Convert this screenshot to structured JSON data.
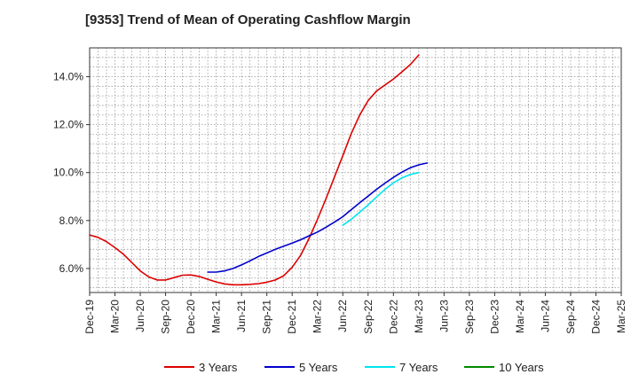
{
  "chart_data": {
    "type": "line",
    "title": "[9353]  Trend of Mean of Operating Cashflow Margin",
    "xlabel": "",
    "ylabel": "",
    "grid": true,
    "legend_position": "bottom",
    "x_categories": [
      "Dec-19",
      "Mar-20",
      "Jun-20",
      "Sep-20",
      "Dec-20",
      "Mar-21",
      "Jun-21",
      "Sep-21",
      "Dec-21",
      "Mar-22",
      "Jun-22",
      "Sep-22",
      "Dec-22",
      "Mar-23",
      "Jun-23",
      "Sep-23",
      "Dec-23",
      "Mar-24",
      "Jun-24",
      "Sep-24",
      "Dec-24",
      "Mar-25"
    ],
    "ylim": [
      5.0,
      15.2
    ],
    "y_ticks": [
      6.0,
      8.0,
      10.0,
      12.0,
      14.0
    ],
    "y_tick_labels": [
      "6.0%",
      "8.0%",
      "10.0%",
      "12.0%",
      "14.0%"
    ],
    "series": [
      {
        "name": "3 Years",
        "color": "#dd0000",
        "start_index": 0,
        "values": [
          7.4,
          7.3,
          7.12,
          6.87,
          6.6,
          6.25,
          5.9,
          5.65,
          5.52,
          5.52,
          5.62,
          5.72,
          5.73,
          5.67,
          5.55,
          5.44,
          5.36,
          5.32,
          5.32,
          5.34,
          5.37,
          5.43,
          5.52,
          5.7,
          6.05,
          6.55,
          7.25,
          8.05,
          8.9,
          9.8,
          10.7,
          11.62,
          12.4,
          13.0,
          13.4,
          13.65,
          13.9,
          14.2,
          14.5,
          14.9
        ]
      },
      {
        "name": "5 Years",
        "color": "#0000cc",
        "start_index": 14,
        "values": [
          5.85,
          5.85,
          5.9,
          6.0,
          6.15,
          6.32,
          6.5,
          6.65,
          6.8,
          6.93,
          7.06,
          7.2,
          7.36,
          7.52,
          7.72,
          7.93,
          8.16,
          8.45,
          8.74,
          9.02,
          9.3,
          9.56,
          9.8,
          10.02,
          10.2,
          10.32,
          10.4
        ]
      },
      {
        "name": "7 Years",
        "color": "#00e5ee",
        "start_index": 30,
        "values": [
          7.8,
          8.05,
          8.35,
          8.65,
          8.98,
          9.3,
          9.57,
          9.78,
          9.92,
          10.0
        ]
      },
      {
        "name": "10 Years",
        "color": "#008800",
        "start_index": 0,
        "values": []
      }
    ]
  }
}
